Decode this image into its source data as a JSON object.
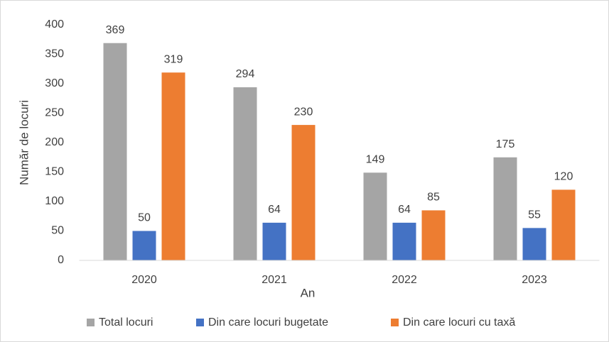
{
  "chart_data": {
    "type": "bar",
    "x_label": "An",
    "y_label": "Număr de locuri",
    "categories": [
      "2020",
      "2021",
      "2022",
      "2023"
    ],
    "series": [
      {
        "name": "Total locuri",
        "color": "#a5a5a5",
        "values": [
          369,
          294,
          149,
          175
        ]
      },
      {
        "name": "Din care locuri bugetate",
        "color": "#4472c4",
        "values": [
          50,
          64,
          64,
          55
        ]
      },
      {
        "name": "Din care locuri cu taxă",
        "color": "#ed7d31",
        "values": [
          319,
          230,
          85,
          120
        ]
      }
    ],
    "ylim": [
      0,
      400
    ],
    "yticks": [
      0,
      50,
      100,
      150,
      200,
      250,
      300,
      350,
      400
    ],
    "grid": false,
    "legend": "bottom"
  }
}
